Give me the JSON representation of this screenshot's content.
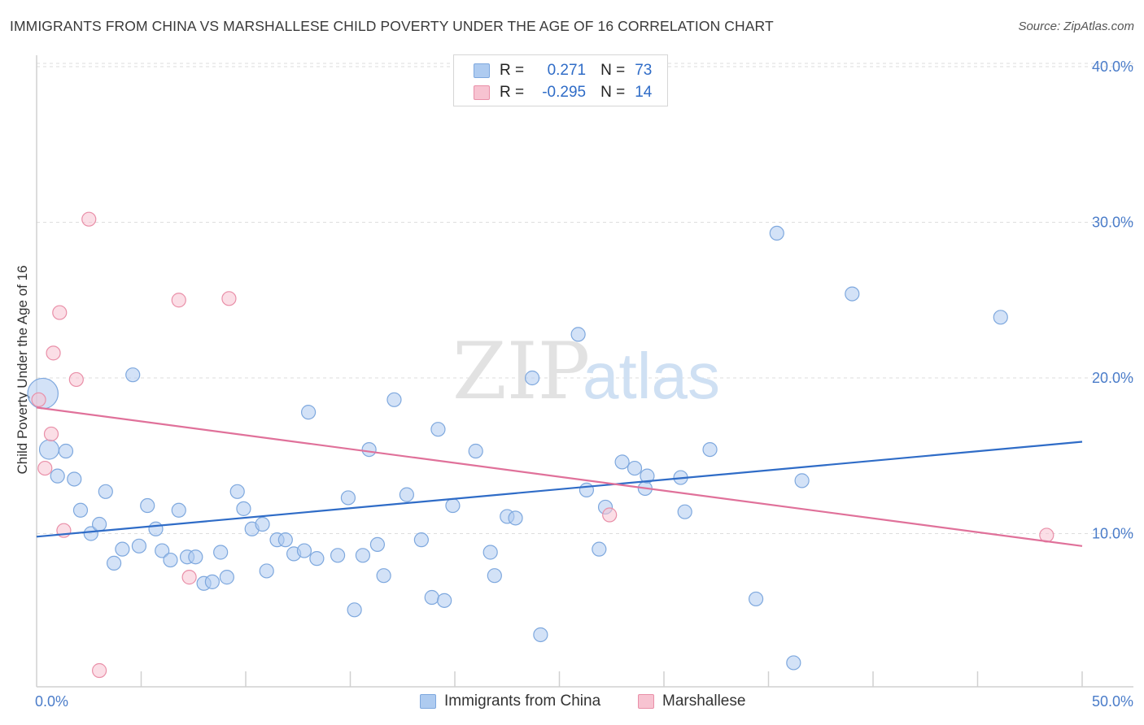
{
  "title": "IMMIGRANTS FROM CHINA VS MARSHALLESE CHILD POVERTY UNDER THE AGE OF 16 CORRELATION CHART",
  "source": "Source: ZipAtlas.com",
  "watermark": {
    "zip": "ZIP",
    "atlas": "atlas"
  },
  "legend": {
    "rows": [
      {
        "r_label": "R =",
        "r_value": "0.271",
        "n_label": "N =",
        "n_value": "73",
        "color": "#aecbf0",
        "border": "#7ea8de"
      },
      {
        "r_label": "R =",
        "r_value": "-0.295",
        "n_label": "N =",
        "n_value": "14",
        "color": "#f7c3d1",
        "border": "#e98fa8"
      }
    ]
  },
  "bottom_legend": [
    {
      "label": "Immigrants from China",
      "color": "#aecbf0",
      "border": "#7ea8de"
    },
    {
      "label": "Marshallese",
      "color": "#f7c3d1",
      "border": "#e98fa8"
    }
  ],
  "chart_data": {
    "type": "scatter",
    "title": "IMMIGRANTS FROM CHINA VS MARSHALLESE CHILD POVERTY UNDER THE AGE OF 16 CORRELATION CHART",
    "xlabel": "",
    "ylabel": "Child Poverty Under the Age of 16",
    "xlim": [
      0,
      50
    ],
    "ylim": [
      0,
      42
    ],
    "x_tick_labels": [
      "0.0%",
      "50.0%"
    ],
    "y_ticks": [
      10,
      20,
      30,
      40
    ],
    "y_tick_labels": [
      "10.0%",
      "20.0%",
      "30.0%",
      "40.0%"
    ],
    "grid": "horizontal dashed",
    "legend_position": "top-center",
    "series": [
      {
        "name": "Immigrants from China",
        "color": "#aecbf0",
        "stroke": "#7ea8de",
        "line_color": "#2f6cc7",
        "trend": [
          [
            0,
            9.8
          ],
          [
            50,
            15.9
          ]
        ],
        "points": [
          [
            0.3,
            19.0,
            2.2
          ],
          [
            0.6,
            15.4,
            1.4
          ],
          [
            1.4,
            15.3,
            1
          ],
          [
            1.0,
            13.7,
            1
          ],
          [
            1.8,
            13.5,
            1
          ],
          [
            2.1,
            11.5,
            1
          ],
          [
            2.6,
            10.0,
            1
          ],
          [
            3.0,
            10.6,
            1
          ],
          [
            3.3,
            12.7,
            1
          ],
          [
            3.7,
            8.1,
            1
          ],
          [
            4.1,
            9.0,
            1
          ],
          [
            4.6,
            20.2,
            1
          ],
          [
            4.9,
            9.2,
            1
          ],
          [
            5.3,
            11.8,
            1
          ],
          [
            5.7,
            10.3,
            1
          ],
          [
            6.0,
            8.9,
            1
          ],
          [
            6.4,
            8.3,
            1
          ],
          [
            6.8,
            11.5,
            1
          ],
          [
            7.2,
            8.5,
            1
          ],
          [
            7.6,
            8.5,
            1
          ],
          [
            8.0,
            6.8,
            1
          ],
          [
            8.4,
            6.9,
            1
          ],
          [
            8.8,
            8.8,
            1
          ],
          [
            9.1,
            7.2,
            1
          ],
          [
            9.6,
            12.7,
            1
          ],
          [
            9.9,
            11.6,
            1
          ],
          [
            10.3,
            10.3,
            1
          ],
          [
            10.8,
            10.6,
            1
          ],
          [
            11.0,
            7.6,
            1
          ],
          [
            11.5,
            9.6,
            1
          ],
          [
            11.9,
            9.6,
            1
          ],
          [
            12.3,
            8.7,
            1
          ],
          [
            12.8,
            8.9,
            1
          ],
          [
            13.0,
            17.8,
            1
          ],
          [
            13.4,
            8.4,
            1
          ],
          [
            14.4,
            8.6,
            1
          ],
          [
            14.9,
            12.3,
            1
          ],
          [
            15.2,
            5.1,
            1
          ],
          [
            15.6,
            8.6,
            1
          ],
          [
            15.9,
            15.4,
            1
          ],
          [
            16.3,
            9.3,
            1
          ],
          [
            16.6,
            7.3,
            1
          ],
          [
            17.1,
            18.6,
            1
          ],
          [
            17.7,
            12.5,
            1
          ],
          [
            18.4,
            9.6,
            1
          ],
          [
            18.9,
            5.9,
            1
          ],
          [
            19.2,
            16.7,
            1
          ],
          [
            19.5,
            5.7,
            1
          ],
          [
            19.9,
            11.8,
            1
          ],
          [
            21.0,
            15.3,
            1
          ],
          [
            21.7,
            8.8,
            1
          ],
          [
            21.9,
            7.3,
            1
          ],
          [
            22.5,
            11.1,
            1
          ],
          [
            22.9,
            11.0,
            1
          ],
          [
            23.7,
            20.0,
            1
          ],
          [
            24.1,
            3.5,
            1
          ],
          [
            25.9,
            22.8,
            1
          ],
          [
            26.3,
            12.8,
            1
          ],
          [
            26.9,
            9.0,
            1
          ],
          [
            27.2,
            11.7,
            1
          ],
          [
            28.0,
            14.6,
            1
          ],
          [
            28.6,
            14.2,
            1
          ],
          [
            29.1,
            12.9,
            1
          ],
          [
            29.2,
            13.7,
            1
          ],
          [
            30.8,
            13.6,
            1
          ],
          [
            31.0,
            11.4,
            1
          ],
          [
            32.2,
            15.4,
            1
          ],
          [
            34.4,
            5.8,
            1
          ],
          [
            35.4,
            29.3,
            1
          ],
          [
            36.2,
            1.7,
            1
          ],
          [
            36.6,
            13.4,
            1
          ],
          [
            39.0,
            25.4,
            1
          ],
          [
            46.1,
            23.9,
            1
          ]
        ]
      },
      {
        "name": "Marshallese",
        "color": "#f7c3d1",
        "stroke": "#e98fa8",
        "line_color": "#e0719a",
        "trend": [
          [
            0,
            18.1
          ],
          [
            50,
            9.2
          ]
        ],
        "points": [
          [
            0.1,
            18.6,
            1
          ],
          [
            0.4,
            14.2,
            1
          ],
          [
            0.7,
            16.4,
            1
          ],
          [
            0.8,
            21.6,
            1
          ],
          [
            1.1,
            24.2,
            1
          ],
          [
            1.3,
            10.2,
            1
          ],
          [
            1.9,
            19.9,
            1
          ],
          [
            2.5,
            30.2,
            1
          ],
          [
            3.0,
            1.2,
            1
          ],
          [
            6.8,
            25.0,
            1
          ],
          [
            7.3,
            7.2,
            1
          ],
          [
            9.2,
            25.1,
            1
          ],
          [
            27.4,
            11.2,
            1
          ],
          [
            48.3,
            9.9,
            1
          ]
        ]
      }
    ]
  }
}
